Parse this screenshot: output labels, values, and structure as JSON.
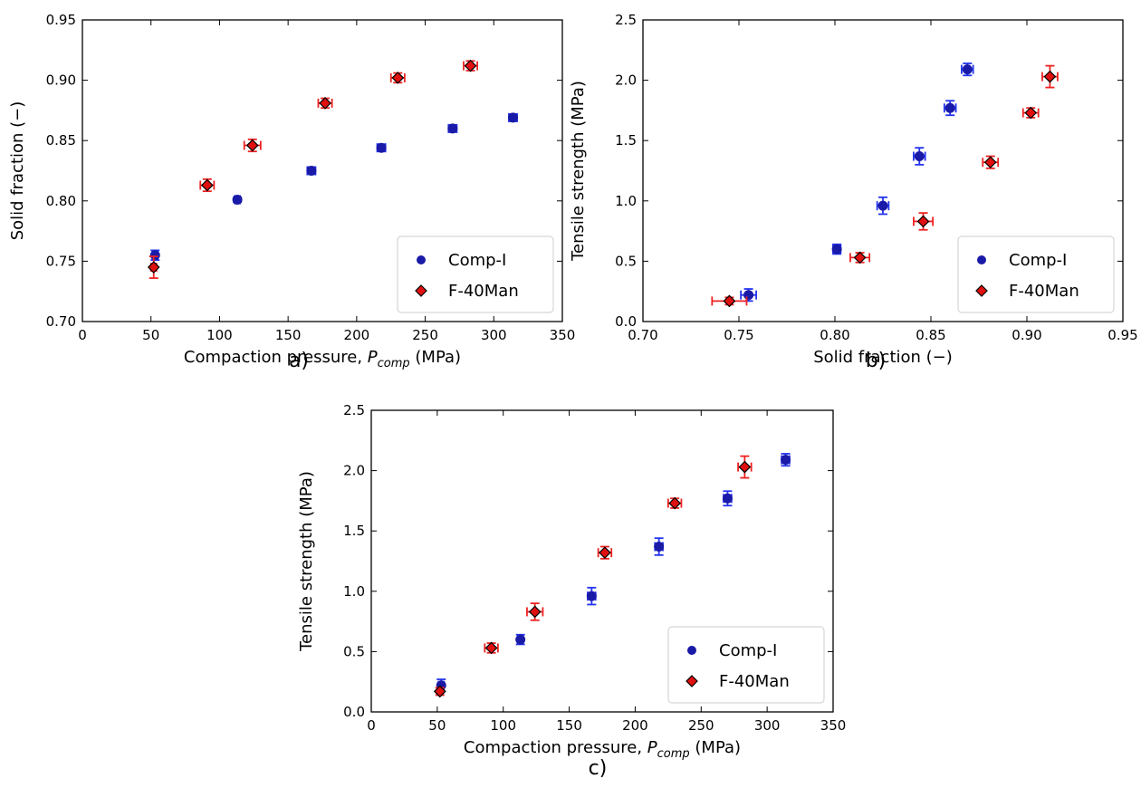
{
  "colors": {
    "comp_fill": "#1a1aa8",
    "comp_err": "#2233ee",
    "f40_fill": "#e01010",
    "f40_err": "#ee2222",
    "f40_edge": "#000000"
  },
  "chart_data": [
    {
      "id": "a",
      "type": "scatter",
      "panel_label": "a)",
      "xlabel": "Compaction pressure, ",
      "xlabel_var": "P",
      "xlabel_sub": "comp",
      "xlabel_unit": " (MPa)",
      "ylabel": "Solid fraction (−)",
      "xlim": [
        0,
        350
      ],
      "ylim": [
        0.7,
        0.95
      ],
      "xticks": [
        "0",
        "50",
        "100",
        "150",
        "200",
        "250",
        "300",
        "350"
      ],
      "yticks": [
        "0.70",
        "0.75",
        "0.80",
        "0.85",
        "0.90",
        "0.95"
      ],
      "legend": {
        "placement": "lower-right",
        "entries": [
          "Comp-I",
          "F-40Man"
        ]
      },
      "series": [
        {
          "name": "Comp-I",
          "marker": "circle",
          "points": [
            {
              "x": 53,
              "y": 0.755,
              "xerr": 2,
              "yerr": 0.004
            },
            {
              "x": 113,
              "y": 0.801,
              "xerr": 2,
              "yerr": 0.002
            },
            {
              "x": 167,
              "y": 0.825,
              "xerr": 3,
              "yerr": 0.003
            },
            {
              "x": 218,
              "y": 0.844,
              "xerr": 3,
              "yerr": 0.003
            },
            {
              "x": 270,
              "y": 0.86,
              "xerr": 3,
              "yerr": 0.003
            },
            {
              "x": 314,
              "y": 0.869,
              "xerr": 3,
              "yerr": 0.003
            }
          ]
        },
        {
          "name": "F-40Man",
          "marker": "diamond",
          "points": [
            {
              "x": 52,
              "y": 0.745,
              "xerr": 2,
              "yerr": 0.009
            },
            {
              "x": 91,
              "y": 0.813,
              "xerr": 5,
              "yerr": 0.005
            },
            {
              "x": 124,
              "y": 0.846,
              "xerr": 6,
              "yerr": 0.005
            },
            {
              "x": 177,
              "y": 0.881,
              "xerr": 5,
              "yerr": 0.004
            },
            {
              "x": 230,
              "y": 0.902,
              "xerr": 5,
              "yerr": 0.004
            },
            {
              "x": 283,
              "y": 0.912,
              "xerr": 5,
              "yerr": 0.004
            }
          ]
        }
      ]
    },
    {
      "id": "b",
      "type": "scatter",
      "panel_label": "b)",
      "xlabel": "Solid fraction (−)",
      "xlabel_var": "",
      "xlabel_sub": "",
      "xlabel_unit": "",
      "ylabel": "Tensile strength (MPa)",
      "xlim": [
        0.7,
        0.95
      ],
      "ylim": [
        0.0,
        2.5
      ],
      "xticks": [
        "0.70",
        "0.75",
        "0.80",
        "0.85",
        "0.90",
        "0.95"
      ],
      "yticks": [
        "0.0",
        "0.5",
        "1.0",
        "1.5",
        "2.0",
        "2.5"
      ],
      "legend": {
        "placement": "lower-right",
        "entries": [
          "Comp-I",
          "F-40Man"
        ]
      },
      "series": [
        {
          "name": "Comp-I",
          "marker": "circle",
          "points": [
            {
              "x": 0.755,
              "y": 0.22,
              "xerr": 0.004,
              "yerr": 0.05
            },
            {
              "x": 0.801,
              "y": 0.6,
              "xerr": 0.002,
              "yerr": 0.04
            },
            {
              "x": 0.825,
              "y": 0.96,
              "xerr": 0.003,
              "yerr": 0.07
            },
            {
              "x": 0.844,
              "y": 1.37,
              "xerr": 0.003,
              "yerr": 0.07
            },
            {
              "x": 0.86,
              "y": 1.77,
              "xerr": 0.003,
              "yerr": 0.06
            },
            {
              "x": 0.869,
              "y": 2.09,
              "xerr": 0.003,
              "yerr": 0.05
            }
          ]
        },
        {
          "name": "F-40Man",
          "marker": "diamond",
          "points": [
            {
              "x": 0.745,
              "y": 0.17,
              "xerr": 0.009,
              "yerr": 0.03
            },
            {
              "x": 0.813,
              "y": 0.53,
              "xerr": 0.005,
              "yerr": 0.04
            },
            {
              "x": 0.846,
              "y": 0.83,
              "xerr": 0.005,
              "yerr": 0.07
            },
            {
              "x": 0.881,
              "y": 1.32,
              "xerr": 0.004,
              "yerr": 0.05
            },
            {
              "x": 0.902,
              "y": 1.73,
              "xerr": 0.004,
              "yerr": 0.04
            },
            {
              "x": 0.912,
              "y": 2.03,
              "xerr": 0.004,
              "yerr": 0.09
            }
          ]
        }
      ]
    },
    {
      "id": "c",
      "type": "scatter",
      "panel_label": "c)",
      "xlabel": "Compaction pressure, ",
      "xlabel_var": "P",
      "xlabel_sub": "comp",
      "xlabel_unit": " (MPa)",
      "ylabel": "Tensile strength (MPa)",
      "xlim": [
        0,
        350
      ],
      "ylim": [
        0.0,
        2.5
      ],
      "xticks": [
        "0",
        "50",
        "100",
        "150",
        "200",
        "250",
        "300",
        "350"
      ],
      "yticks": [
        "0.0",
        "0.5",
        "1.0",
        "1.5",
        "2.0",
        "2.5"
      ],
      "legend": {
        "placement": "lower-right",
        "entries": [
          "Comp-I",
          "F-40Man"
        ]
      },
      "series": [
        {
          "name": "Comp-I",
          "marker": "circle",
          "points": [
            {
              "x": 53,
              "y": 0.22,
              "xerr": 2,
              "yerr": 0.05
            },
            {
              "x": 113,
              "y": 0.6,
              "xerr": 2,
              "yerr": 0.04
            },
            {
              "x": 167,
              "y": 0.96,
              "xerr": 3,
              "yerr": 0.07
            },
            {
              "x": 218,
              "y": 1.37,
              "xerr": 3,
              "yerr": 0.07
            },
            {
              "x": 270,
              "y": 1.77,
              "xerr": 3,
              "yerr": 0.06
            },
            {
              "x": 314,
              "y": 2.09,
              "xerr": 3,
              "yerr": 0.05
            }
          ]
        },
        {
          "name": "F-40Man",
          "marker": "diamond",
          "points": [
            {
              "x": 52,
              "y": 0.17,
              "xerr": 2,
              "yerr": 0.03
            },
            {
              "x": 91,
              "y": 0.53,
              "xerr": 5,
              "yerr": 0.04
            },
            {
              "x": 124,
              "y": 0.83,
              "xerr": 6,
              "yerr": 0.07
            },
            {
              "x": 177,
              "y": 1.32,
              "xerr": 5,
              "yerr": 0.05
            },
            {
              "x": 230,
              "y": 1.73,
              "xerr": 5,
              "yerr": 0.04
            },
            {
              "x": 283,
              "y": 2.03,
              "xerr": 5,
              "yerr": 0.09
            }
          ]
        }
      ]
    }
  ]
}
